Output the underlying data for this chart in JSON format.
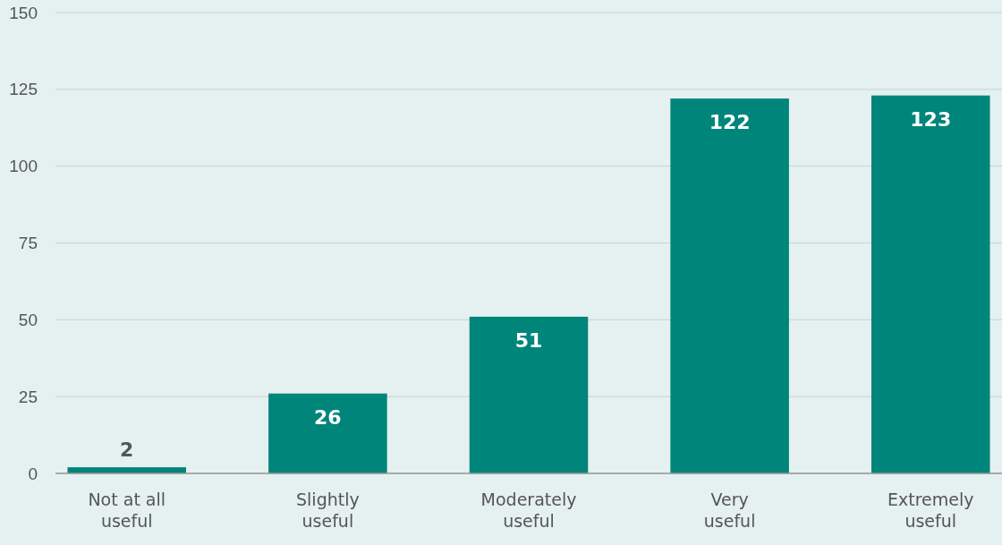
{
  "chart_data": {
    "type": "bar",
    "categories": [
      "Not at all useful",
      "Slightly useful",
      "Moderately useful",
      "Very useful",
      "Extremely useful"
    ],
    "values": [
      2,
      26,
      51,
      122,
      123
    ],
    "color": "#00857a",
    "ylim": [
      0,
      150
    ],
    "yticks": [
      0,
      25,
      50,
      75,
      100,
      125,
      150
    ],
    "grid": "y",
    "data_labels": true
  }
}
